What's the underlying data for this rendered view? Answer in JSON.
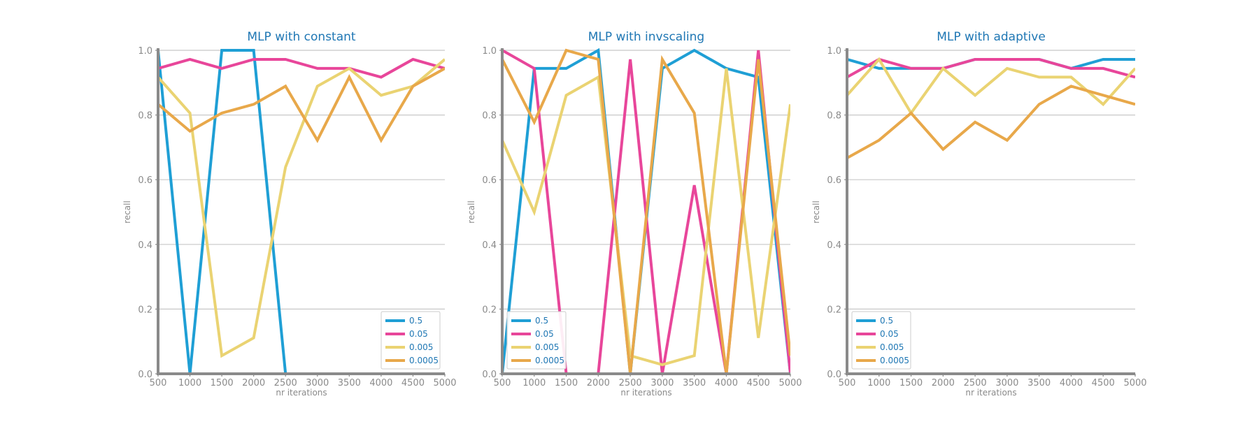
{
  "chart_data": [
    {
      "type": "line",
      "title": "MLP with constant",
      "xlabel": "nr iterations",
      "ylabel": "recall",
      "x": [
        500,
        1000,
        1500,
        2000,
        2500,
        3000,
        3500,
        4000,
        4500,
        5000
      ],
      "xlim": [
        500,
        5000
      ],
      "ylim": [
        0.0,
        1.0
      ],
      "yticks": [
        0.0,
        0.2,
        0.4,
        0.6,
        0.8,
        1.0
      ],
      "grid": "horizontal",
      "legend": "bottom-right",
      "series": [
        {
          "name": "0.5",
          "color": "#1f9fd5",
          "values": [
            1.0,
            0.0,
            1.0,
            1.0,
            0.0,
            0.0,
            0.0,
            0.0,
            0.0,
            0.0
          ]
        },
        {
          "name": "0.05",
          "color": "#e8469a",
          "values": [
            0.944,
            0.972,
            0.944,
            0.972,
            0.972,
            0.944,
            0.944,
            0.917,
            0.972,
            0.944
          ]
        },
        {
          "name": "0.005",
          "color": "#ead372",
          "values": [
            0.917,
            0.806,
            0.056,
            0.111,
            0.639,
            0.889,
            0.944,
            0.861,
            0.889,
            0.972
          ]
        },
        {
          "name": "0.0005",
          "color": "#e8a84a",
          "values": [
            0.833,
            0.75,
            0.806,
            0.833,
            0.889,
            0.722,
            0.917,
            0.722,
            0.889,
            0.944
          ]
        }
      ]
    },
    {
      "type": "line",
      "title": "MLP with invscaling",
      "xlabel": "nr iterations",
      "ylabel": "recall",
      "x": [
        500,
        1000,
        1500,
        2000,
        2500,
        3000,
        3500,
        4000,
        4500,
        5000
      ],
      "xlim": [
        500,
        5000
      ],
      "ylim": [
        0.0,
        1.0
      ],
      "yticks": [
        0.0,
        0.2,
        0.4,
        0.6,
        0.8,
        1.0
      ],
      "grid": "horizontal",
      "legend": "bottom-left",
      "series": [
        {
          "name": "0.5",
          "color": "#1f9fd5",
          "values": [
            0.0,
            0.944,
            0.944,
            1.0,
            0.0,
            0.944,
            1.0,
            0.944,
            0.917,
            0.0
          ]
        },
        {
          "name": "0.05",
          "color": "#e8469a",
          "values": [
            1.0,
            0.944,
            0.0,
            0.0,
            0.972,
            0.0,
            0.583,
            0.0,
            1.0,
            0.0
          ]
        },
        {
          "name": "0.005",
          "color": "#ead372",
          "values": [
            0.722,
            0.5,
            0.861,
            0.917,
            0.056,
            0.028,
            0.056,
            0.944,
            0.111,
            0.833
          ]
        },
        {
          "name": "0.0005",
          "color": "#e8a84a",
          "values": [
            0.972,
            0.778,
            1.0,
            0.972,
            0.0,
            0.972,
            0.806,
            0.0,
            0.972,
            0.056
          ]
        }
      ]
    },
    {
      "type": "line",
      "title": "MLP with adaptive",
      "xlabel": "nr iterations",
      "ylabel": "recall",
      "x": [
        500,
        1000,
        1500,
        2000,
        2500,
        3000,
        3500,
        4000,
        4500,
        5000
      ],
      "xlim": [
        500,
        5000
      ],
      "ylim": [
        0.0,
        1.0
      ],
      "yticks": [
        0.0,
        0.2,
        0.4,
        0.6,
        0.8,
        1.0
      ],
      "grid": "horizontal",
      "legend": "bottom-left",
      "series": [
        {
          "name": "0.5",
          "color": "#1f9fd5",
          "values": [
            0.972,
            0.944,
            0.944,
            0.944,
            0.972,
            0.972,
            0.972,
            0.944,
            0.972,
            0.972
          ]
        },
        {
          "name": "0.05",
          "color": "#e8469a",
          "values": [
            0.917,
            0.972,
            0.944,
            0.944,
            0.972,
            0.972,
            0.972,
            0.944,
            0.944,
            0.917
          ]
        },
        {
          "name": "0.005",
          "color": "#ead372",
          "values": [
            0.861,
            0.972,
            0.806,
            0.944,
            0.861,
            0.944,
            0.917,
            0.917,
            0.833,
            0.944
          ]
        },
        {
          "name": "0.0005",
          "color": "#e8a84a",
          "values": [
            0.667,
            0.722,
            0.806,
            0.694,
            0.778,
            0.722,
            0.833,
            0.889,
            0.861,
            0.833
          ]
        }
      ]
    }
  ]
}
